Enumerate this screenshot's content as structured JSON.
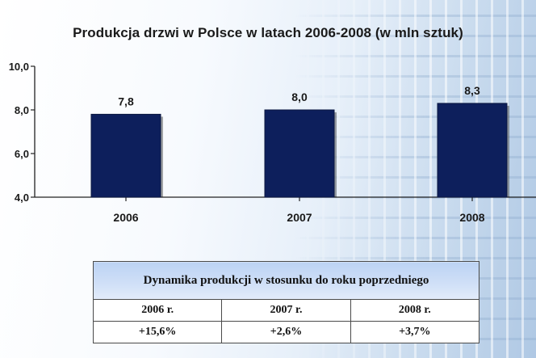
{
  "chart_data": {
    "type": "bar",
    "title": "Produkcja drzwi w Polsce w latach 2006-2008 (w mln sztuk)",
    "categories": [
      "2006",
      "2007",
      "2008"
    ],
    "values": [
      7.8,
      8.0,
      8.3
    ],
    "data_labels": [
      "7,8",
      "8,0",
      "8,3"
    ],
    "ylim": [
      4.0,
      10.0
    ],
    "yticks": [
      4.0,
      6.0,
      8.0,
      10.0
    ],
    "ytick_labels": [
      "4,0",
      "6,0",
      "8,0",
      "10,0"
    ],
    "xlabel": "",
    "ylabel": "",
    "grid": false,
    "bar_color": "#0d1f5c"
  },
  "table": {
    "header": "Dynamika produkcji w stosunku do roku poprzedniego",
    "years": [
      "2006 r.",
      "2007 r.",
      "2008 r."
    ],
    "changes": [
      "+15,6%",
      "+2,6%",
      "+3,7%"
    ]
  },
  "colors": {
    "bar": "#0d1f5c",
    "table_header": "#c6daf5"
  }
}
